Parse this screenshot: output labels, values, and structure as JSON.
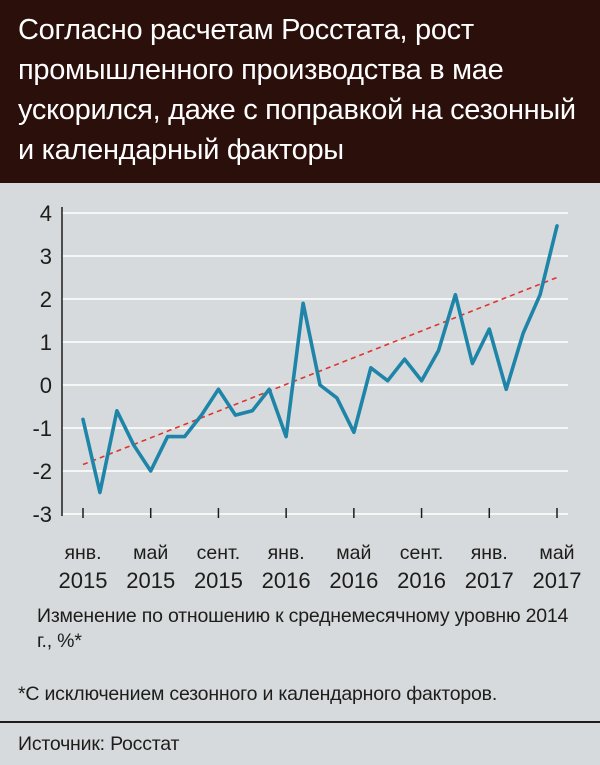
{
  "title": "Согласно расчетам Росстата, рост промышленного производства в мае ускорился, даже с поправкой на сезонный и календарный факторы",
  "caption": "Изменение по отношению к среднемесячному уровню 2014 г., %*",
  "footnote": "*С исключением сезонного и календарного факторов.",
  "source": "Источник: Росстат",
  "colors": {
    "header_bg": "#2a0f0b",
    "panel_bg": "#d6dadc",
    "series": "#1e85a8",
    "trend": "#e0342f",
    "grid": "#ffffff"
  },
  "chart_data": {
    "type": "line",
    "ylim": [
      -3,
      4
    ],
    "yticks": [
      "4",
      "3",
      "2",
      "1",
      "0",
      "-1",
      "-2",
      "-3"
    ],
    "ytick_values": [
      4,
      3,
      2,
      1,
      0,
      -1,
      -2,
      -3
    ],
    "grid": true,
    "xticks": [
      {
        "month": "янв.",
        "year": "2015",
        "index": 0
      },
      {
        "month": "май",
        "year": "2015",
        "index": 4
      },
      {
        "month": "сент.",
        "year": "2015",
        "index": 8
      },
      {
        "month": "янв.",
        "year": "2016",
        "index": 12
      },
      {
        "month": "май",
        "year": "2016",
        "index": 16
      },
      {
        "month": "сент.",
        "year": "2016",
        "index": 20
      },
      {
        "month": "янв.",
        "year": "2017",
        "index": 24
      },
      {
        "month": "май",
        "year": "2017",
        "index": 28
      }
    ],
    "series": [
      {
        "values": [
          -0.8,
          -2.5,
          -0.6,
          -1.4,
          -2.0,
          -1.2,
          -1.2,
          -0.7,
          -0.1,
          -0.7,
          -0.6,
          -0.1,
          -1.2,
          1.9,
          0.0,
          -0.3,
          -1.1,
          0.4,
          0.1,
          0.6,
          0.1,
          0.8,
          2.1,
          0.5,
          1.3,
          -0.1,
          1.2,
          2.1,
          3.7
        ]
      }
    ],
    "trend": {
      "start": -1.85,
      "end": 2.5
    }
  }
}
